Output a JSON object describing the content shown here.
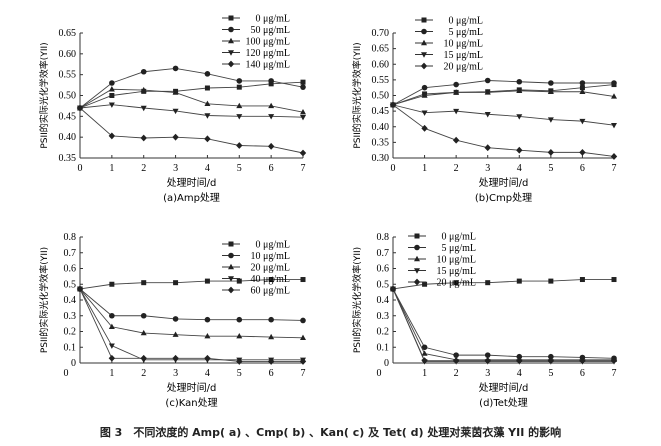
{
  "caption": "图 3　不同浓度的 Amp( a) 、Cmp( b) 、Kan( c) 及 Tet( d) 处理对莱茵衣藻 YII 的影响",
  "chart_data": [
    {
      "type": "line",
      "title": "(a)Amp处理",
      "xlabel": "处理时间/d",
      "ylabel": "PSII的实际光化学效率(YII)",
      "x": [
        0,
        1,
        2,
        3,
        4,
        5,
        6,
        7
      ],
      "xticks": [
        "0",
        "1",
        "2",
        "3",
        "4",
        "5",
        "6",
        "7"
      ],
      "ylim": [
        0.35,
        0.65
      ],
      "yticks": [
        "0.35",
        "0.40",
        "0.45",
        "0.50",
        "0.55",
        "0.60",
        "0.65"
      ],
      "legend_position": "top-right",
      "series": [
        {
          "name": "0 μg/mL",
          "marker": "square",
          "values": [
            0.47,
            0.5,
            0.51,
            0.51,
            0.518,
            0.52,
            0.528,
            0.532
          ]
        },
        {
          "name": "50 μg/mL",
          "marker": "circle",
          "values": [
            0.47,
            0.53,
            0.557,
            0.565,
            0.552,
            0.535,
            0.535,
            0.52
          ]
        },
        {
          "name": "100 μg/mL",
          "marker": "triangle-up",
          "values": [
            0.47,
            0.515,
            0.513,
            0.507,
            0.48,
            0.475,
            0.475,
            0.46
          ]
        },
        {
          "name": "120 μg/mL",
          "marker": "triangle-down",
          "values": [
            0.47,
            0.478,
            0.47,
            0.463,
            0.452,
            0.45,
            0.45,
            0.448
          ]
        },
        {
          "name": "140 μg/mL",
          "marker": "diamond",
          "values": [
            0.47,
            0.403,
            0.398,
            0.4,
            0.396,
            0.38,
            0.378,
            0.362
          ]
        }
      ]
    },
    {
      "type": "line",
      "title": "(b)Cmp处理",
      "xlabel": "处理时间/d",
      "ylabel": "PSII的实际光化学效率(YII)",
      "x": [
        0,
        1,
        2,
        3,
        4,
        5,
        6,
        7
      ],
      "xticks": [
        "0",
        "1",
        "2",
        "3",
        "4",
        "5",
        "6",
        "7"
      ],
      "ylim": [
        0.3,
        0.7
      ],
      "yticks": [
        "0.30",
        "0.35",
        "0.40",
        "0.45",
        "0.50",
        "0.55",
        "0.60",
        "0.65",
        "0.70"
      ],
      "legend_position": "top-left",
      "series": [
        {
          "name": "0 μg/mL",
          "marker": "square",
          "values": [
            0.47,
            0.505,
            0.51,
            0.512,
            0.518,
            0.515,
            0.525,
            0.535
          ]
        },
        {
          "name": "5 μg/mL",
          "marker": "circle",
          "values": [
            0.47,
            0.525,
            0.535,
            0.548,
            0.544,
            0.54,
            0.54,
            0.54
          ]
        },
        {
          "name": "10 μg/mL",
          "marker": "triangle-up",
          "values": [
            0.47,
            0.5,
            0.51,
            0.51,
            0.515,
            0.512,
            0.512,
            0.497
          ]
        },
        {
          "name": "15 μg/mL",
          "marker": "triangle-down",
          "values": [
            0.47,
            0.445,
            0.45,
            0.44,
            0.433,
            0.423,
            0.418,
            0.405
          ]
        },
        {
          "name": "20 μg/mL",
          "marker": "diamond",
          "values": [
            0.47,
            0.395,
            0.357,
            0.333,
            0.325,
            0.318,
            0.318,
            0.305
          ]
        }
      ]
    },
    {
      "type": "line",
      "title": "(c)Kan处理",
      "xlabel": "处理时间/d",
      "ylabel": "PSII的实际光化学效率(YII)",
      "x": [
        0,
        1,
        2,
        3,
        4,
        5,
        6,
        7
      ],
      "xticks": [
        "",
        "1",
        "2",
        "3",
        "4",
        "5",
        "6",
        "7"
      ],
      "ylim": [
        0,
        0.8
      ],
      "yticks": [
        "0",
        "0.1",
        "0.2",
        "0.3",
        "0.4",
        "0.5",
        "0.6",
        "0.7",
        "0.8"
      ],
      "legend_position": "top-right",
      "series": [
        {
          "name": "0 μg/mL",
          "marker": "square",
          "values": [
            0.47,
            0.5,
            0.51,
            0.51,
            0.52,
            0.52,
            0.53,
            0.53
          ]
        },
        {
          "name": "10 μg/mL",
          "marker": "circle",
          "values": [
            0.47,
            0.3,
            0.3,
            0.28,
            0.275,
            0.275,
            0.275,
            0.27
          ]
        },
        {
          "name": "20 μg/mL",
          "marker": "triangle-up",
          "values": [
            0.47,
            0.23,
            0.19,
            0.18,
            0.17,
            0.17,
            0.165,
            0.16
          ]
        },
        {
          "name": "40 μg/mL",
          "marker": "triangle-down",
          "values": [
            0.47,
            0.11,
            0.02,
            0.02,
            0.02,
            0.02,
            0.02,
            0.02
          ]
        },
        {
          "name": "60 μg/mL",
          "marker": "diamond",
          "values": [
            0.47,
            0.03,
            0.03,
            0.03,
            0.03,
            0.01,
            0.01,
            0.01
          ]
        }
      ]
    },
    {
      "type": "line",
      "title": "(d)Tet处理",
      "xlabel": "处理时间/d",
      "ylabel": "PSII的实际光化学效率(YII)",
      "x": [
        0,
        1,
        2,
        3,
        4,
        5,
        6,
        7
      ],
      "xticks": [
        "",
        "1",
        "2",
        "3",
        "4",
        "5",
        "6",
        "7"
      ],
      "ylim": [
        0,
        0.8
      ],
      "yticks": [
        "0",
        "0.1",
        "0.2",
        "0.3",
        "0.4",
        "0.5",
        "0.6",
        "0.7",
        "0.8"
      ],
      "legend_position": "top-left",
      "series": [
        {
          "name": "0 μg/mL",
          "marker": "square",
          "values": [
            0.47,
            0.5,
            0.51,
            0.51,
            0.52,
            0.52,
            0.53,
            0.53
          ]
        },
        {
          "name": "5 μg/mL",
          "marker": "circle",
          "values": [
            0.47,
            0.1,
            0.05,
            0.05,
            0.04,
            0.04,
            0.035,
            0.03
          ]
        },
        {
          "name": "10 μg/mL",
          "marker": "triangle-up",
          "values": [
            0.47,
            0.06,
            0.02,
            0.02,
            0.02,
            0.02,
            0.02,
            0.02
          ]
        },
        {
          "name": "15 μg/mL",
          "marker": "triangle-down",
          "values": [
            0.47,
            0.01,
            0.01,
            0.01,
            0.01,
            0.01,
            0.01,
            0.01
          ]
        },
        {
          "name": "20 μg/mL",
          "marker": "diamond",
          "values": [
            0.47,
            0.015,
            0.015,
            0.015,
            0.015,
            0.015,
            0.015,
            0.015
          ]
        }
      ]
    }
  ]
}
